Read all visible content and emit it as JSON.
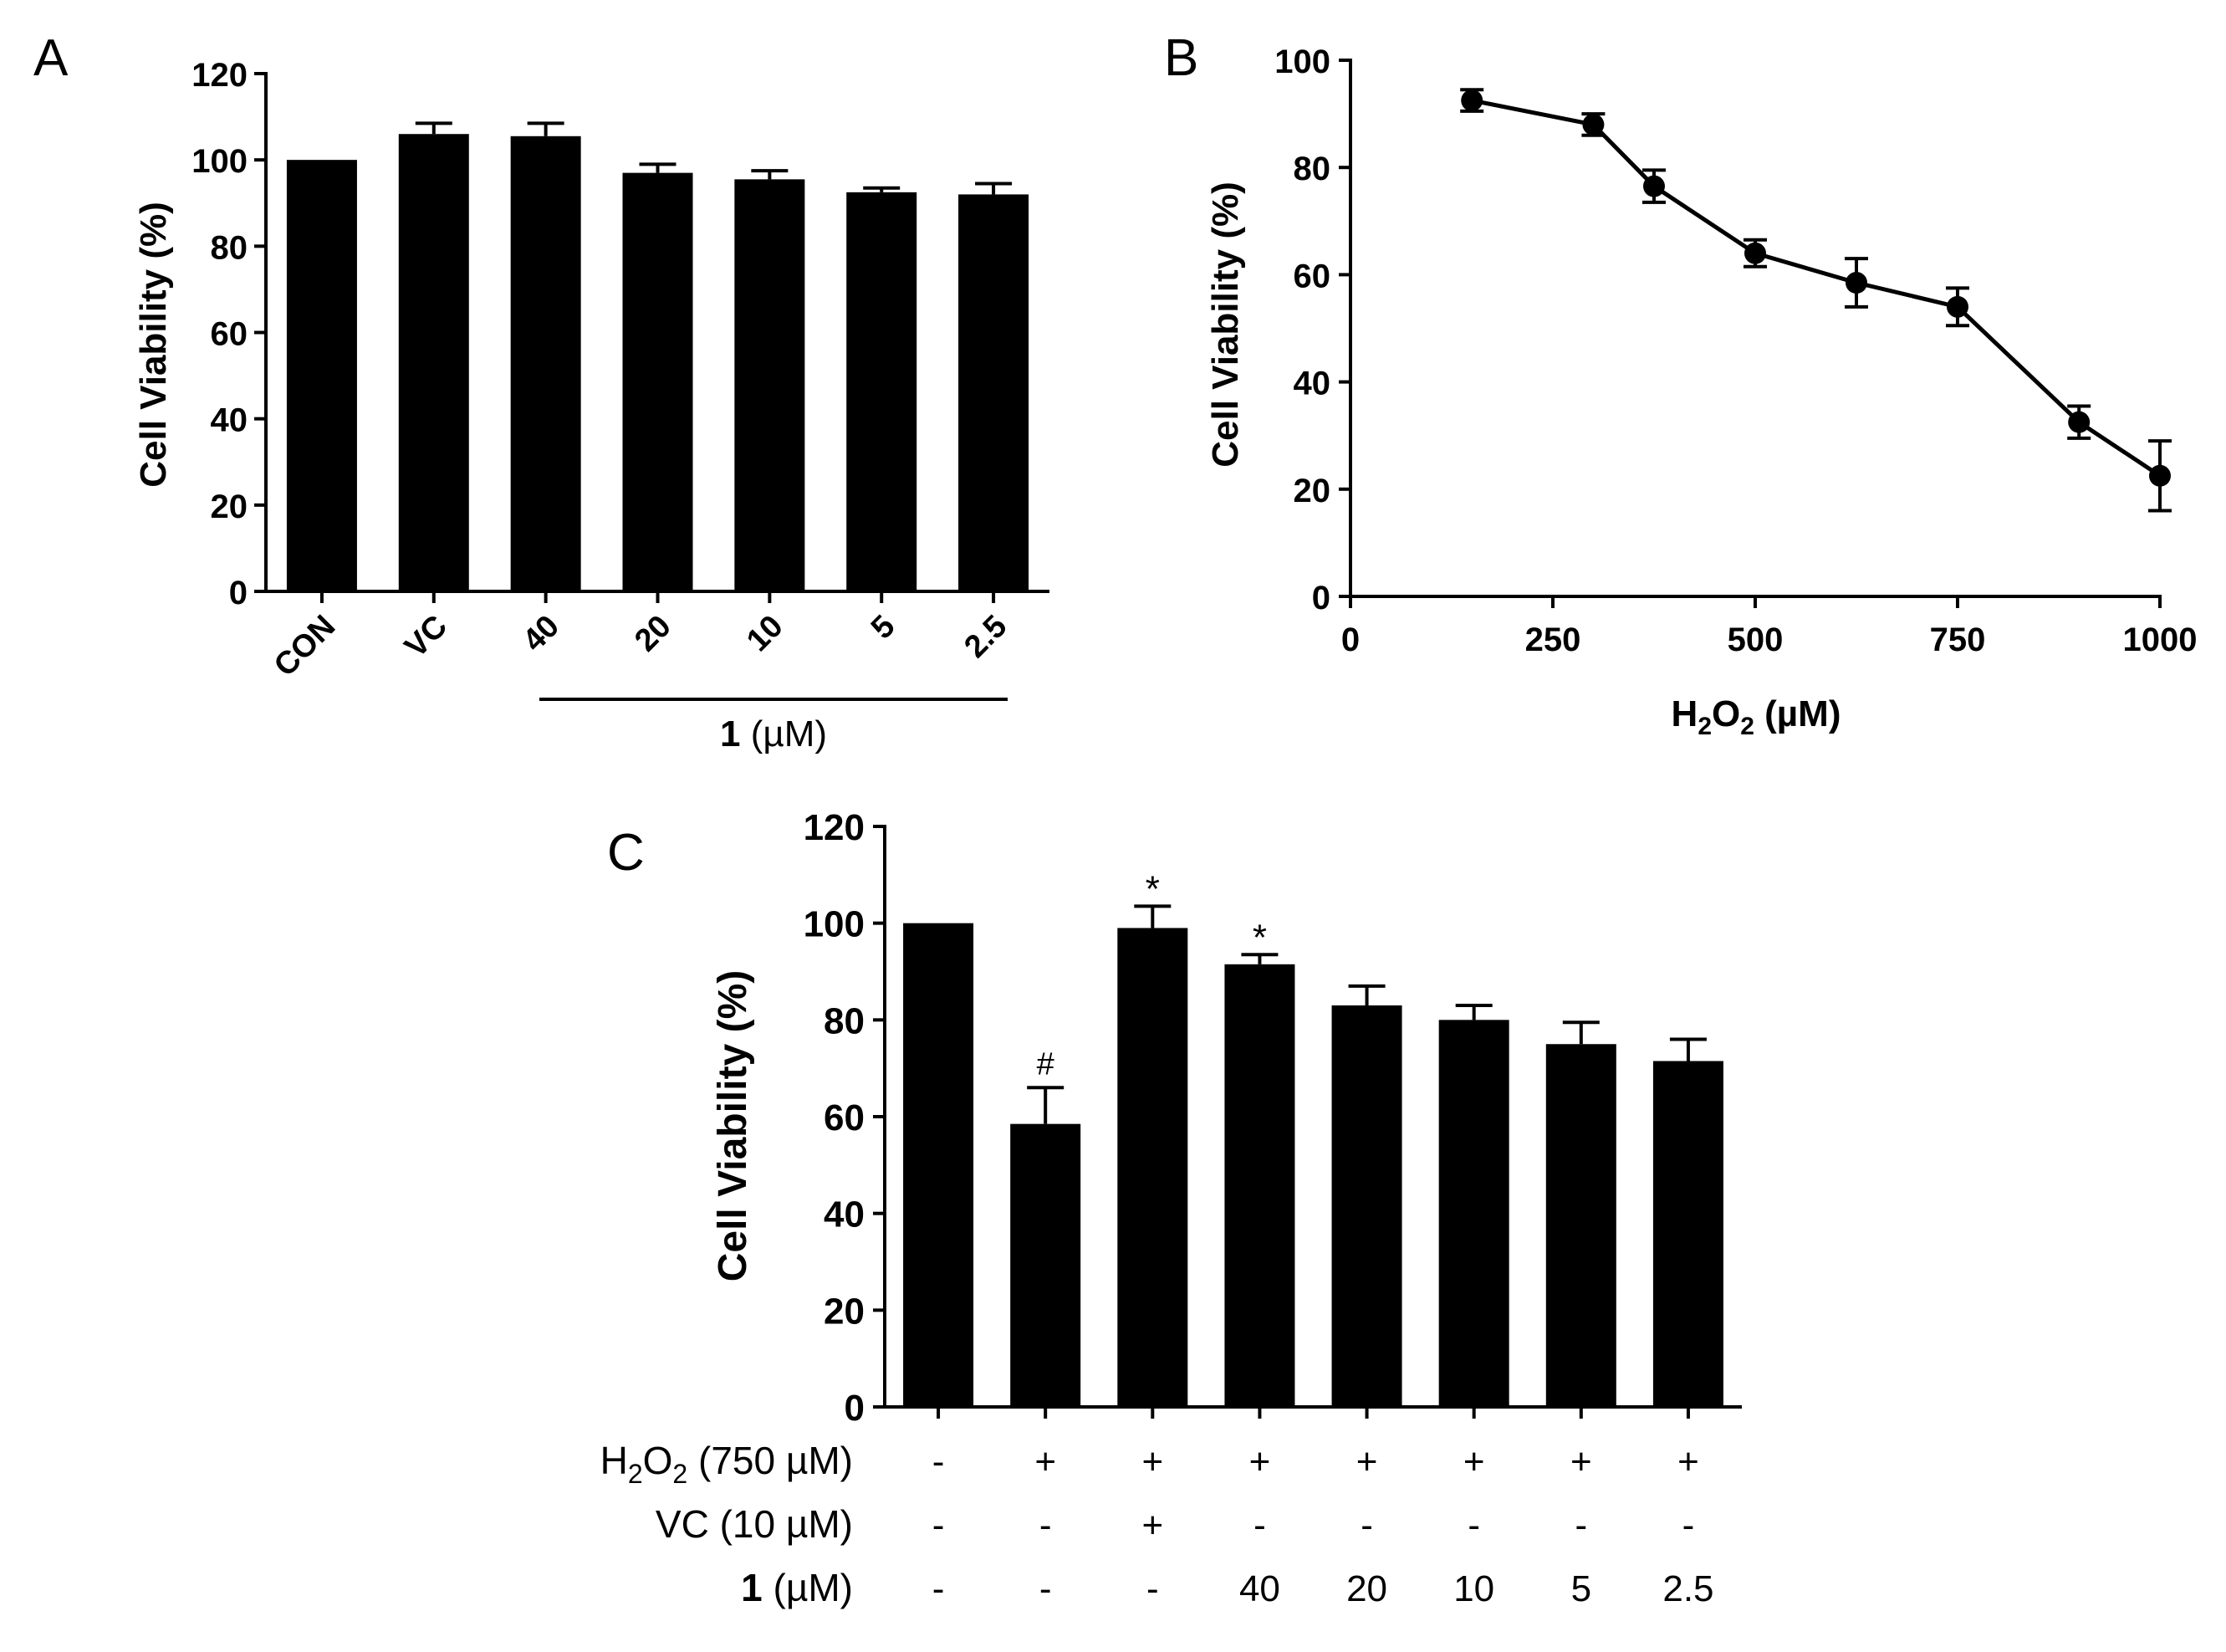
{
  "chart_data": [
    {
      "panel": "A",
      "type": "bar",
      "ylabel": "Cell Viability (%)",
      "ylim": [
        0,
        120
      ],
      "yticks": [
        0,
        20,
        40,
        60,
        80,
        100,
        120
      ],
      "categories": [
        "CON",
        "VC",
        "40",
        "20",
        "10",
        "5",
        "2.5"
      ],
      "values": [
        100,
        106,
        105.5,
        97,
        95.5,
        92.5,
        92
      ],
      "errors": [
        0,
        2.5,
        3,
        2,
        2,
        1,
        2.5
      ],
      "group_label": {
        "compound": "1",
        "unit": "(µM)"
      }
    },
    {
      "panel": "B",
      "type": "line",
      "ylabel": "Cell Viability (%)",
      "xlabel": {
        "h": "H",
        "sub1": "2",
        "o": "O",
        "sub2": "2",
        "unit": "(µM)"
      },
      "xlim": [
        0,
        1000
      ],
      "ylim": [
        0,
        100
      ],
      "xticks": [
        0,
        250,
        500,
        750,
        1000
      ],
      "yticks": [
        0,
        20,
        40,
        60,
        80,
        100
      ],
      "x": [
        150,
        300,
        375,
        500,
        625,
        750,
        900,
        1000
      ],
      "y": [
        92.5,
        88,
        76.5,
        64,
        58.5,
        54,
        32.5,
        22.5
      ],
      "errors": [
        2,
        2,
        3,
        2.5,
        4.5,
        3.5,
        3,
        6.5
      ]
    },
    {
      "panel": "C",
      "type": "bar",
      "ylabel": "Cell Viability (%)",
      "ylim": [
        0,
        120
      ],
      "yticks": [
        0,
        20,
        40,
        60,
        80,
        100,
        120
      ],
      "values": [
        100,
        58.5,
        99,
        91.5,
        83,
        80,
        75,
        71.5
      ],
      "errors": [
        0,
        7.5,
        4.5,
        2,
        4,
        3,
        4.5,
        4.5
      ],
      "annotations": [
        "",
        "#",
        "*",
        "*",
        "",
        "",
        "",
        ""
      ],
      "table_labels": {
        "h2o2": {
          "h": "H",
          "sub1": "2",
          "o": "O",
          "sub2": "2",
          "rest": " (750 µM)"
        },
        "vc": "VC (10 µM)",
        "compound": {
          "num": "1",
          "rest": " (µM)"
        }
      },
      "rows": {
        "h2o2": [
          "-",
          "+",
          "+",
          "+",
          "+",
          "+",
          "+",
          "+"
        ],
        "vc": [
          "-",
          "-",
          "+",
          "-",
          "-",
          "-",
          "-",
          "-"
        ],
        "compound": [
          "-",
          "-",
          "-",
          "40",
          "20",
          "10",
          "5",
          "2.5"
        ]
      }
    }
  ],
  "panel_letters": [
    "A",
    "B",
    "C"
  ]
}
